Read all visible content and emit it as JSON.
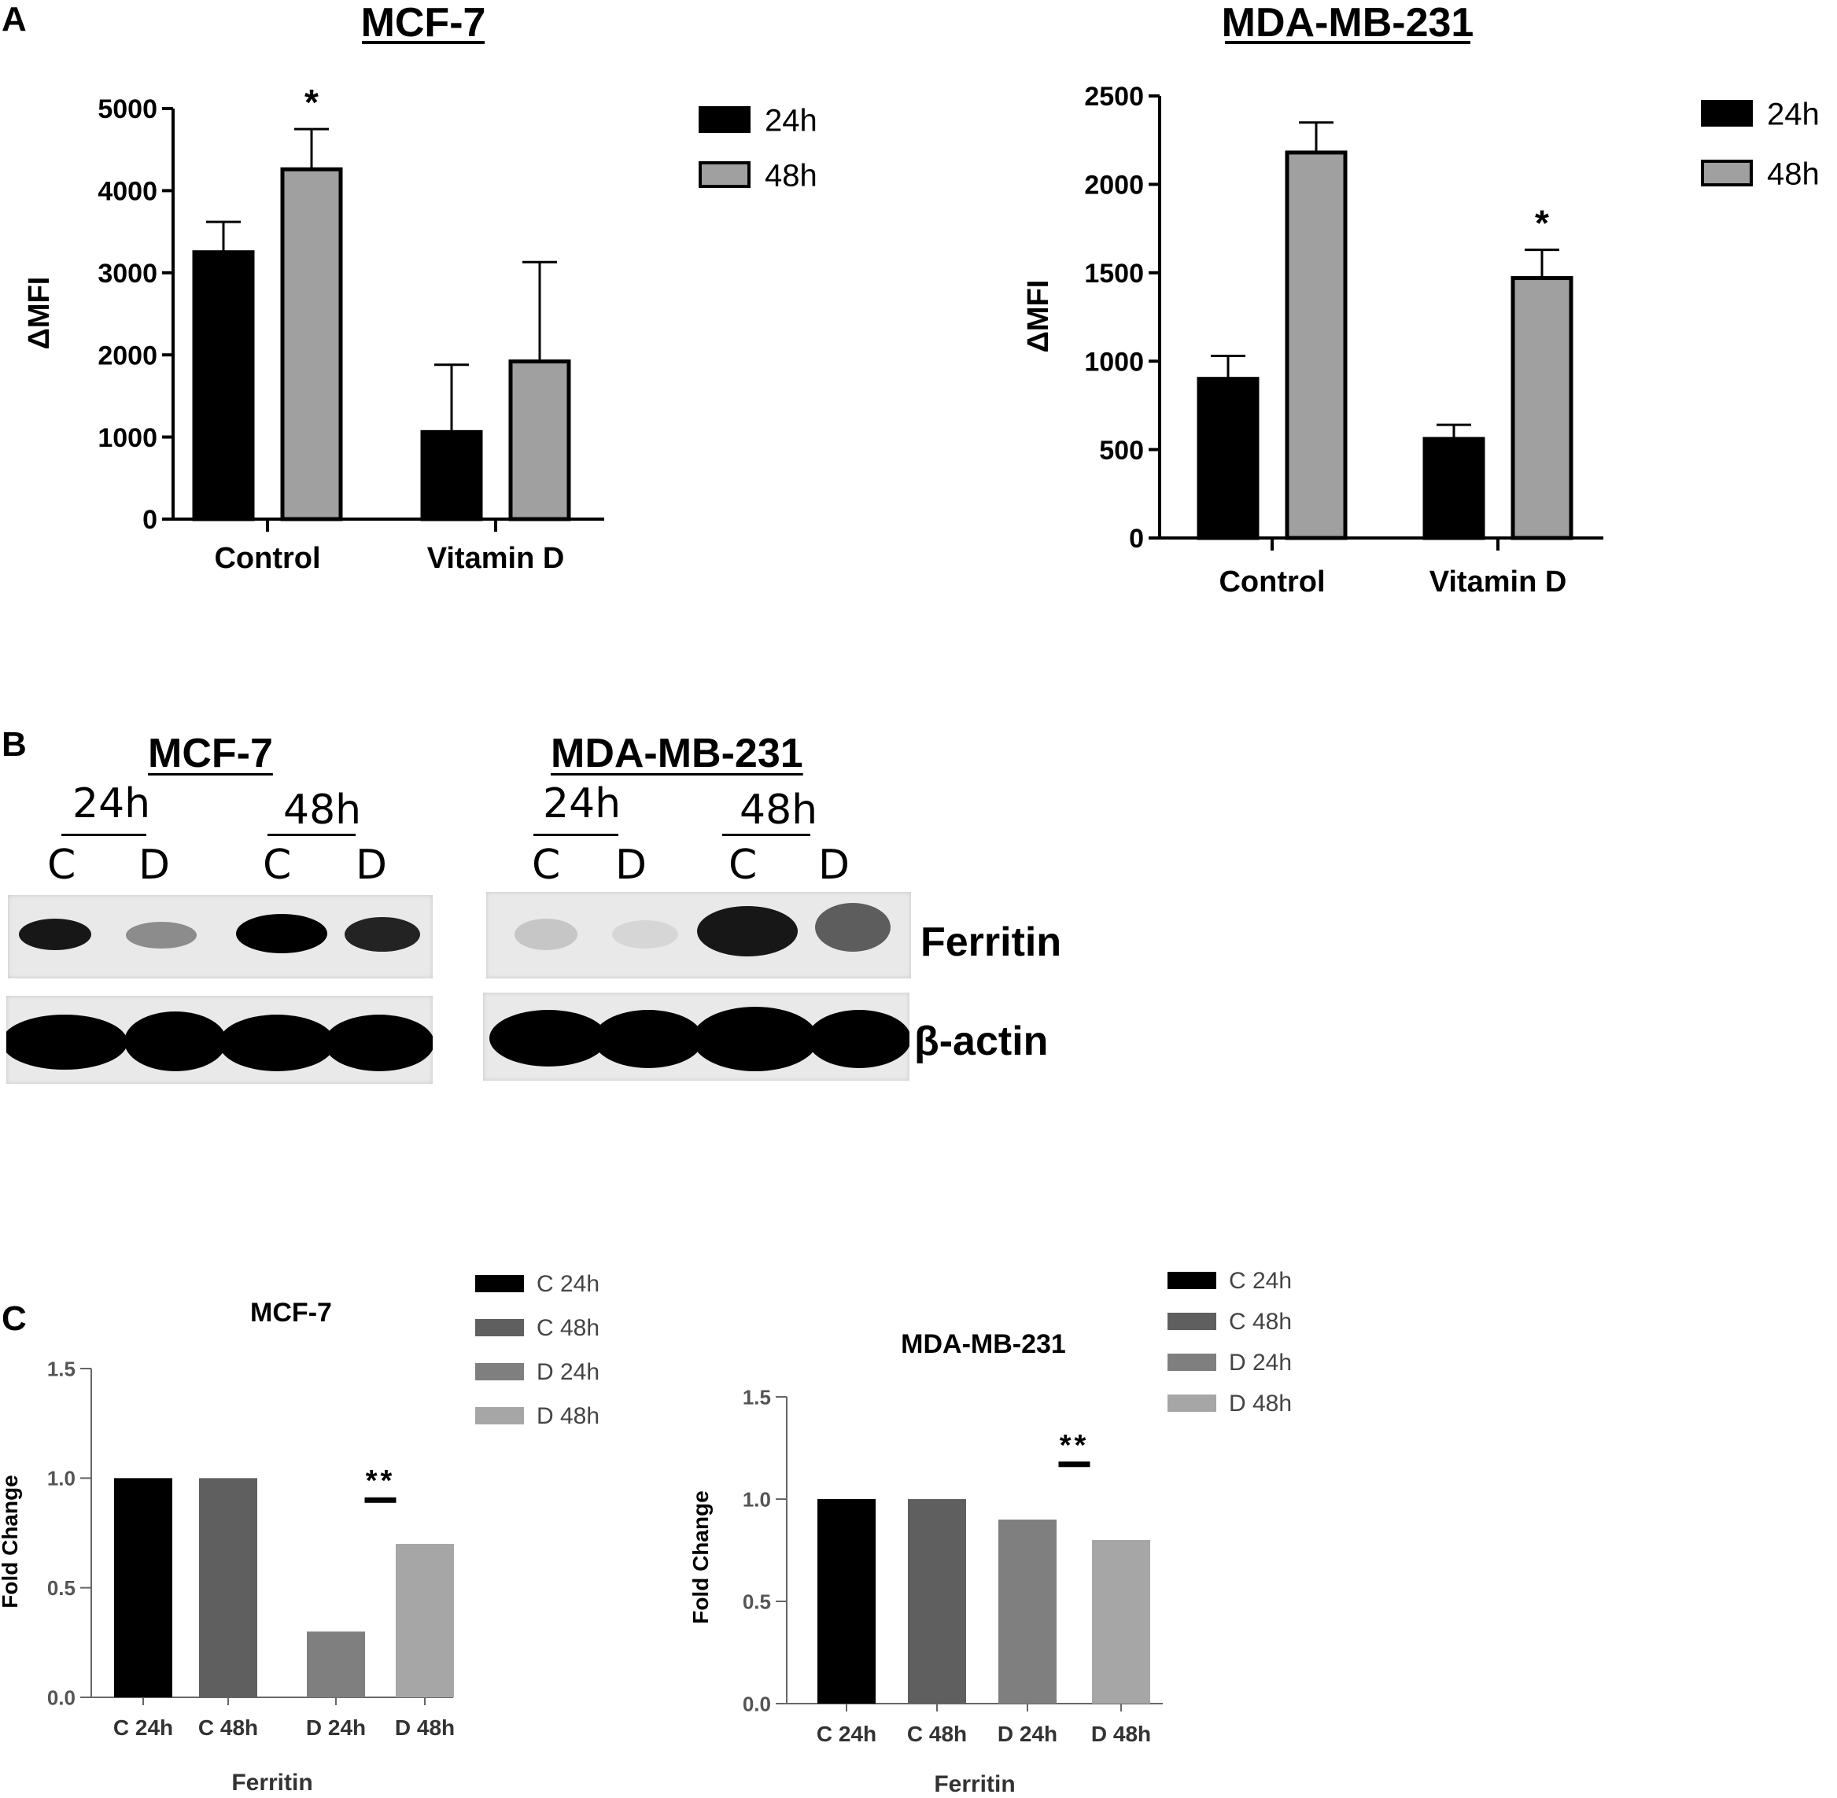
{
  "panels": {
    "a": "A",
    "b": "B",
    "c": "C"
  },
  "chart_data": [
    {
      "type": "bar",
      "title": "MCF-7",
      "categories": [
        "Control",
        "Vitamin D"
      ],
      "ylabel": "ΔMFI",
      "ylim": [
        0,
        5000
      ],
      "yticks": [
        0,
        1000,
        2000,
        3000,
        4000,
        5000
      ],
      "legend_position": "top-right",
      "series": [
        {
          "name": "24h",
          "color": "#000000",
          "values": [
            3250,
            1060
          ],
          "errors": [
            370,
            820
          ]
        },
        {
          "name": "48h",
          "color": "#a0a0a0",
          "values": [
            4260,
            1920
          ],
          "errors": [
            490,
            1210
          ]
        }
      ],
      "annotations": [
        {
          "series": 1,
          "category": 0,
          "text": "*"
        }
      ]
    },
    {
      "type": "bar",
      "title": "MDA-MB-231",
      "categories": [
        "Control",
        "Vitamin D"
      ],
      "ylabel": "ΔMFI",
      "ylim": [
        0,
        2500
      ],
      "yticks": [
        0,
        500,
        1000,
        1500,
        2000,
        2500
      ],
      "legend_position": "top-right",
      "series": [
        {
          "name": "24h",
          "color": "#000000",
          "values": [
            900,
            560
          ],
          "errors": [
            130,
            80
          ]
        },
        {
          "name": "48h",
          "color": "#a0a0a0",
          "values": [
            2180,
            1470
          ],
          "errors": [
            170,
            160
          ]
        }
      ],
      "annotations": [
        {
          "series": 1,
          "category": 1,
          "text": "*"
        }
      ]
    },
    {
      "type": "bar",
      "title": "MCF-7",
      "categories": [
        "C 24h",
        "C 48h",
        "D 24h",
        "D 48h"
      ],
      "values": [
        1.0,
        1.0,
        0.3,
        0.7
      ],
      "colors": [
        "#000000",
        "#5f5f5f",
        "#7f7f7f",
        "#a6a6a6"
      ],
      "xlabel": "Ferritin",
      "ylabel": "Fold Change",
      "ylim": [
        0,
        1.5
      ],
      "yticks": [
        "0.0",
        "0.5",
        "1.0",
        "1.5"
      ],
      "legend": [
        "C 24h",
        "C 48h",
        "D 24h",
        "D 48h"
      ],
      "legend_position": "top-right",
      "annotations": [
        {
          "category": 2,
          "text": "**"
        }
      ]
    },
    {
      "type": "bar",
      "title": "MDA-MB-231",
      "categories": [
        "C 24h",
        "C 48h",
        "D 24h",
        "D 48h"
      ],
      "values": [
        1.0,
        1.0,
        0.9,
        0.8
      ],
      "colors": [
        "#000000",
        "#5f5f5f",
        "#7f7f7f",
        "#a6a6a6"
      ],
      "xlabel": "Ferritin",
      "ylabel": "Fold Change",
      "ylim": [
        0,
        1.5
      ],
      "yticks": [
        "0.0",
        "0.5",
        "1.0",
        "1.5"
      ],
      "legend": [
        "C 24h",
        "C 48h",
        "D 24h",
        "D 48h"
      ],
      "legend_position": "top-right",
      "annotations": [
        {
          "category": 2,
          "text": "**"
        }
      ]
    }
  ],
  "blots": {
    "left": {
      "title": "MCF-7",
      "group_24": "24h",
      "group_48": "48h",
      "lanes": [
        "C",
        "D",
        "C",
        "D"
      ]
    },
    "right": {
      "title": "MDA-MB-231",
      "group_24": "24h",
      "group_48": "48h",
      "lanes": [
        "C",
        "D",
        "C",
        "D"
      ]
    },
    "rows": [
      "Ferritin",
      "β-actin"
    ],
    "ferritin_left_intensity": [
      0.9,
      0.4,
      1.0,
      0.85
    ],
    "ferritin_right_intensity": [
      0.15,
      0.08,
      0.9,
      0.6
    ]
  }
}
